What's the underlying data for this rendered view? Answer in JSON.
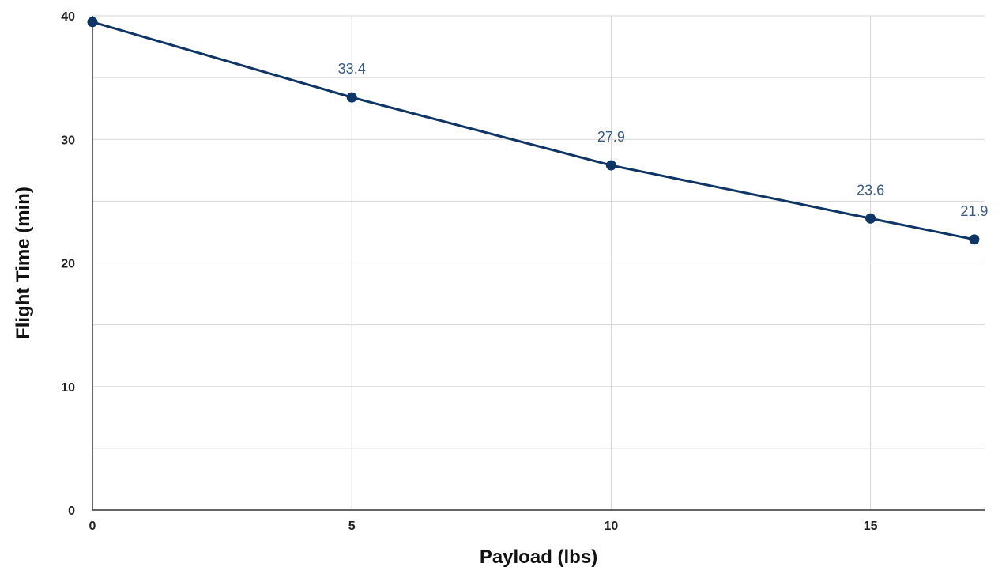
{
  "chart_data": {
    "type": "line",
    "xlabel": "Payload (lbs)",
    "ylabel": "Flight Time (min)",
    "xlim": [
      0,
      17
    ],
    "ylim": [
      0,
      40
    ],
    "x_ticks": [
      "0",
      "5",
      "10",
      "15"
    ],
    "y_ticks": [
      "0",
      "10",
      "20",
      "30",
      "40"
    ],
    "grid": true,
    "series": [
      {
        "color": "#0e3563",
        "points": [
          {
            "x": 0,
            "y": 39.5,
            "label": ""
          },
          {
            "x": 5,
            "y": 33.4,
            "label": "33.4"
          },
          {
            "x": 10,
            "y": 27.9,
            "label": "27.9"
          },
          {
            "x": 15,
            "y": 23.6,
            "label": "23.6"
          },
          {
            "x": 17,
            "y": 21.9,
            "label": "21.9"
          }
        ]
      }
    ]
  }
}
